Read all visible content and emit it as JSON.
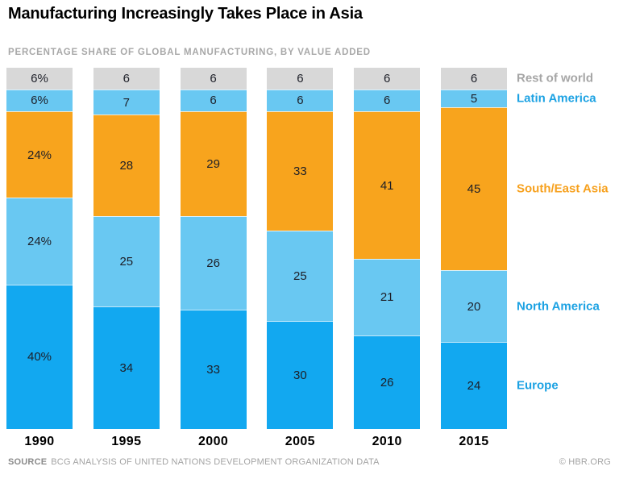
{
  "title": "Manufacturing Increasingly Takes Place in Asia",
  "subtitle": "PERCENTAGE SHARE OF GLOBAL MANUFACTURING, BY VALUE ADDED",
  "footer": {
    "source_label": "SOURCE",
    "source_text": "BCG ANALYSIS OF UNITED NATIONS DEVELOPMENT ORGANIZATION DATA",
    "credit": "© HBR.ORG"
  },
  "colors": {
    "europe": "#12A8F0",
    "north_america": "#69C8F2",
    "latin_america": "#69C8F2",
    "south_east_asia": "#F8A41D",
    "rest_of_world": "#D8D8D8",
    "legend_blue": "#1CA2E3",
    "legend_orange": "#F7A11E",
    "legend_gray": "#A6A6A6"
  },
  "chart_data": {
    "type": "bar",
    "stacked": true,
    "unit": "percent",
    "ylim": [
      0,
      100
    ],
    "grid": false,
    "legend_position": "right",
    "categories": [
      "1990",
      "1995",
      "2000",
      "2005",
      "2010",
      "2015"
    ],
    "series_top_to_bottom": [
      {
        "name": "Rest of world",
        "color": "#D8D8D8",
        "legend_color": "#A6A6A6",
        "values": [
          6,
          6,
          6,
          6,
          6,
          6
        ],
        "labels": [
          "6%",
          "6",
          "6",
          "6",
          "6",
          "6"
        ]
      },
      {
        "name": "Latin America",
        "color": "#69C8F2",
        "legend_color": "#1CA2E3",
        "values": [
          6,
          7,
          6,
          6,
          6,
          5
        ],
        "labels": [
          "6%",
          "7",
          "6",
          "6",
          "6",
          "5"
        ]
      },
      {
        "name": "South/East Asia",
        "color": "#F8A41D",
        "legend_color": "#F7A11E",
        "values": [
          24,
          28,
          29,
          33,
          41,
          45
        ],
        "labels": [
          "24%",
          "28",
          "29",
          "33",
          "41",
          "45"
        ]
      },
      {
        "name": "North America",
        "color": "#69C8F2",
        "legend_color": "#1CA2E3",
        "values": [
          24,
          25,
          26,
          25,
          21,
          20
        ],
        "labels": [
          "24%",
          "25",
          "26",
          "25",
          "21",
          "20"
        ]
      },
      {
        "name": "Europe",
        "color": "#12A8F0",
        "legend_color": "#1CA2E3",
        "values": [
          40,
          34,
          33,
          30,
          26,
          24
        ],
        "labels": [
          "40%",
          "34",
          "33",
          "30",
          "26",
          "24"
        ]
      }
    ]
  }
}
